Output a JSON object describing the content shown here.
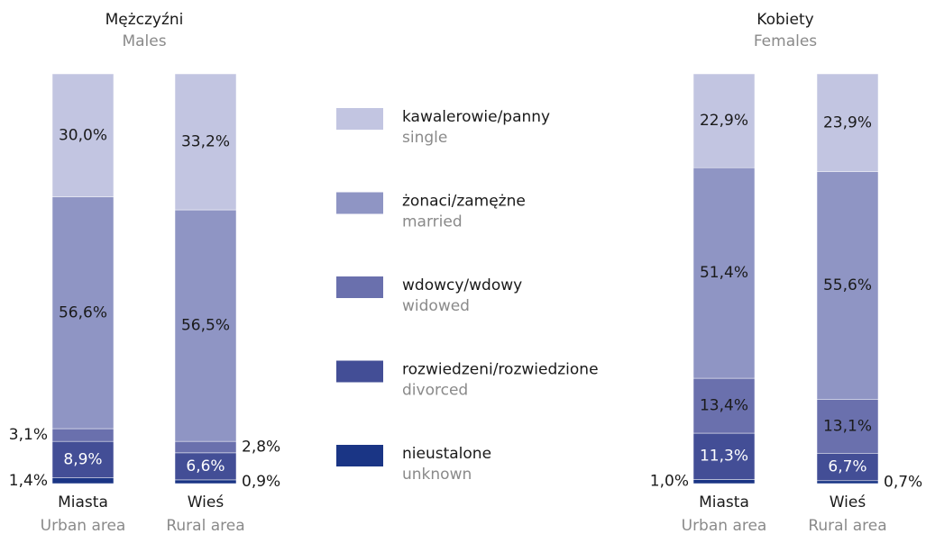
{
  "legend": [
    {
      "name": "kawalerowie/panny",
      "name_en": "single",
      "color": "#c2c5e1"
    },
    {
      "name": "żonaci/zamężne",
      "name_en": "married",
      "color": "#8f95c4"
    },
    {
      "name": "wdowcy/wdowy",
      "name_en": "widowed",
      "color": "#6a70ad"
    },
    {
      "name": "rozwiedzeni/rozwiedzione",
      "name_en": "divorced",
      "color": "#434e96"
    },
    {
      "name": "nieustalone",
      "name_en": "unknown",
      "color": "#1a3585"
    }
  ],
  "chart_data": [
    {
      "type": "bar",
      "stacked": true,
      "title": "Mężczyźni",
      "subtitle": "Males",
      "categories": [
        "Miasta",
        "Wieś"
      ],
      "categories_en": [
        "Urban area",
        "Rural area"
      ],
      "ylim": [
        0,
        100
      ],
      "series": [
        {
          "values": [
            30.0,
            33.2
          ],
          "value_labels": [
            "30,0%",
            "33,2%"
          ]
        },
        {
          "values": [
            56.6,
            56.5
          ],
          "value_labels": [
            "56,6%",
            "56,5%"
          ]
        },
        {
          "values": [
            3.1,
            2.8
          ],
          "value_labels": [
            "3,1%",
            "2,8%"
          ]
        },
        {
          "values": [
            8.9,
            6.6
          ],
          "value_labels": [
            "8,9%",
            "6,6%"
          ]
        },
        {
          "values": [
            1.4,
            0.9
          ],
          "value_labels": [
            "1,4%",
            "0,9%"
          ]
        }
      ]
    },
    {
      "type": "bar",
      "stacked": true,
      "title": "Kobiety",
      "subtitle": "Females",
      "categories": [
        "Miasta",
        "Wieś"
      ],
      "categories_en": [
        "Urban area",
        "Rural area"
      ],
      "ylim": [
        0,
        100
      ],
      "series": [
        {
          "values": [
            22.9,
            23.9
          ],
          "value_labels": [
            "22,9%",
            "23,9%"
          ]
        },
        {
          "values": [
            51.4,
            55.6
          ],
          "value_labels": [
            "51,4%",
            "55,6%"
          ]
        },
        {
          "values": [
            13.4,
            13.1
          ],
          "value_labels": [
            "13,4%",
            "13,1%"
          ]
        },
        {
          "values": [
            11.3,
            6.7
          ],
          "value_labels": [
            "11,3%",
            "6,7%"
          ]
        },
        {
          "values": [
            1.0,
            0.7
          ],
          "value_labels": [
            "1,0%",
            "0,7%"
          ]
        }
      ]
    }
  ]
}
